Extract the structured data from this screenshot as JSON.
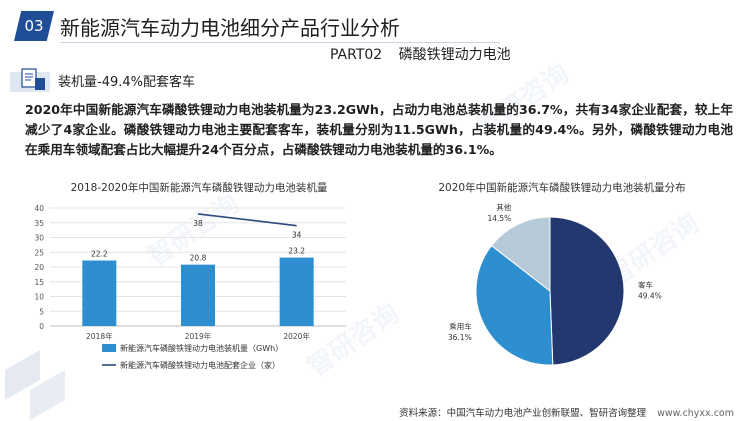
{
  "header": {
    "number": "03",
    "title": "新能源汽车动力电池细分产品行业分析",
    "part": "PART02",
    "section": "磷酸铁锂动力电池"
  },
  "subtitle": "装机量-49.4%配套客车",
  "body_text": "2020年中国新能源汽车磷酸铁锂动力电池装机量为23.2GWh，占动力电池总装机量的36.7%，共有34家企业配套，较上年减少了4家企业。磷酸铁锂动力电池主要配套客车，装机量分别为11.5GWh，占装机量的49.4%。另外，磷酸铁锂动力电池在乘用车领域配套占比大幅提升24个百分点，占磷酸铁锂动力电池装机量的36.1%。",
  "source": "资料来源：中国汽车动力电池产业创新联盟、智研咨询整理",
  "url": "www.chyxx.com",
  "watermark": "智研咨询",
  "colors": {
    "primary": "#1f4e96",
    "bar": "#2e8fd0",
    "line": "#2b4a7e"
  },
  "chart_data": [
    {
      "type": "bar",
      "title": "2018-2020年中国新能源汽车磷酸铁锂动力电池装机量",
      "categories": [
        "2018年",
        "2019年",
        "2020年"
      ],
      "series": [
        {
          "name": "新能源汽车磷酸铁锂动力电池装机量（GWh）",
          "kind": "bar",
          "color": "#2e8fd0",
          "values": [
            22.2,
            20.8,
            23.2
          ]
        },
        {
          "name": "新能源汽车磷酸铁锂动力电池配套企业（家）",
          "kind": "line",
          "color": "#2b4a7e",
          "values": [
            null,
            38,
            34
          ]
        }
      ],
      "yticks": [
        0,
        5,
        10,
        15,
        20,
        25,
        30,
        35,
        40
      ],
      "ylim": [
        0,
        40
      ],
      "grid": true,
      "legend": "bottom"
    },
    {
      "type": "pie",
      "title": "2020年中国新能源汽车磷酸铁锂动力电池装机量分布",
      "slices": [
        {
          "label": "客车",
          "value": 49.4,
          "display": "49.4%",
          "color": "#23386f"
        },
        {
          "label": "乘用车",
          "value": 36.1,
          "display": "36.1%",
          "color": "#2e8fd0"
        },
        {
          "label": "其他",
          "value": 14.5,
          "display": "14.5%",
          "color": "#b7cad8"
        }
      ]
    }
  ]
}
